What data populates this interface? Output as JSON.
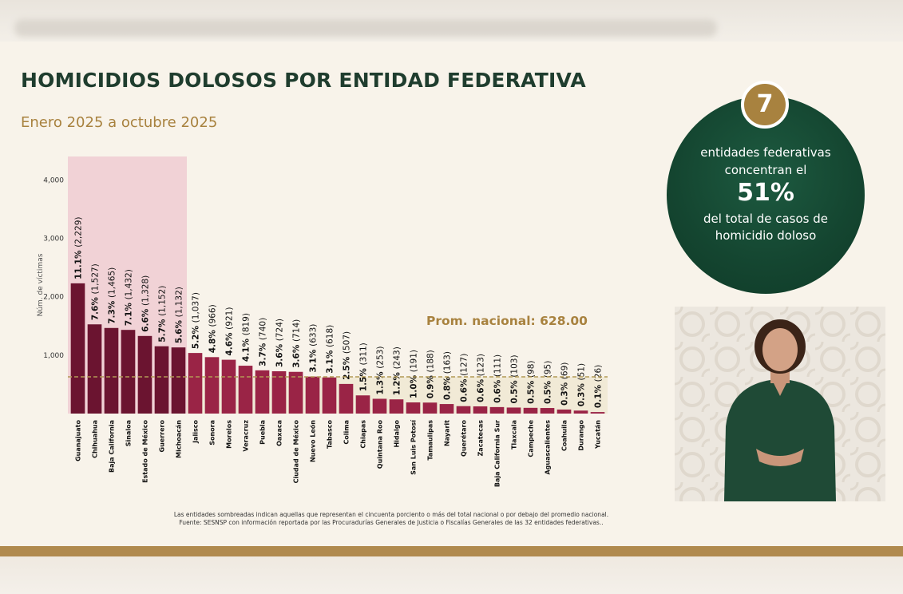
{
  "header": {
    "title": "HOMICIDIOS DOLOSOS POR ENTIDAD FEDERATIVA",
    "subtitle": "Enero 2025 a octubre 2025"
  },
  "callout": {
    "number": "7",
    "line1": "entidades federativas",
    "line2": "concentran el",
    "big": "51%",
    "line3": "del total de casos de",
    "line4": "homicidio doloso"
  },
  "footnote": {
    "line1": "Las entidades sombreadas indican aquellas que representan el cincuenta porciento o más del total nacional o por debajo del promedio nacional.",
    "line2": "Fuente: SESNSP con información reportada por las Procuradurías Generales de Justicia o Fiscalías Generales de las 32 entidades federativas.."
  },
  "colors": {
    "dark_bar": "#6b1430",
    "bar": "#9a2446",
    "highlight": "#f1d2d6",
    "below_avg_band": "#f1ead6",
    "avg_line": "#b39a55",
    "title_green": "#1f3d2e",
    "gold": "#a8823f"
  },
  "chart_data": {
    "type": "bar",
    "ylabel": "Núm. de víctimas",
    "ylim": [
      0,
      4400
    ],
    "yticks": [
      1000,
      2000,
      3000,
      4000
    ],
    "ytick_labels": [
      "1,000",
      "2,000",
      "3,000",
      "4,000"
    ],
    "average": {
      "label": "Prom. nacional: 628.00",
      "value": 628
    },
    "highlight_count": 7,
    "categories": [
      "Guanajuato",
      "Chihuahua",
      "Baja California",
      "Sinaloa",
      "Estado de México",
      "Guerrero",
      "Michoacán",
      "Jalisco",
      "Sonora",
      "Morelos",
      "Veracruz",
      "Puebla",
      "Oaxaca",
      "Ciudad de México",
      "Nuevo León",
      "Tabasco",
      "Colima",
      "Chiapas",
      "Quintana Roo",
      "Hidalgo",
      "San Luis Potosí",
      "Tamaulipas",
      "Nayarit",
      "Querétaro",
      "Zacatecas",
      "Baja California Sur",
      "Tlaxcala",
      "Campeche",
      "Aguascalientes",
      "Coahuila",
      "Durango",
      "Yucatán"
    ],
    "values": [
      2229,
      1527,
      1465,
      1432,
      1328,
      1152,
      1132,
      1037,
      966,
      921,
      819,
      740,
      724,
      714,
      633,
      618,
      507,
      311,
      253,
      243,
      191,
      188,
      163,
      127,
      123,
      111,
      103,
      98,
      95,
      69,
      51,
      26
    ],
    "pct_labels": [
      "11.1%",
      "7.6%",
      "7.3%",
      "7.1%",
      "6.6%",
      "5.7%",
      "5.6%",
      "5.2%",
      "4.8%",
      "4.6%",
      "4.1%",
      "3.7%",
      "3.6%",
      "3.6%",
      "3.1%",
      "3.1%",
      "2.5%",
      "1.5%",
      "1.3%",
      "1.2%",
      "1.0%",
      "0.9%",
      "0.8%",
      "0.6%",
      "0.6%",
      "0.6%",
      "0.5%",
      "0.5%",
      "0.5%",
      "0.3%",
      "0.3%",
      "0.1%"
    ],
    "count_labels": [
      "(2,229)",
      "(1,527)",
      "(1,465)",
      "(1,432)",
      "(1,328)",
      "(1,152)",
      "(1,132)",
      "(1,037)",
      "(966)",
      "(921)",
      "(819)",
      "(740)",
      "(724)",
      "(714)",
      "(633)",
      "(618)",
      "(507)",
      "(311)",
      "(253)",
      "(243)",
      "(191)",
      "(188)",
      "(163)",
      "(127)",
      "(123)",
      "(111)",
      "(103)",
      "(98)",
      "(95)",
      "(69)",
      "(51)",
      "(26)"
    ]
  }
}
